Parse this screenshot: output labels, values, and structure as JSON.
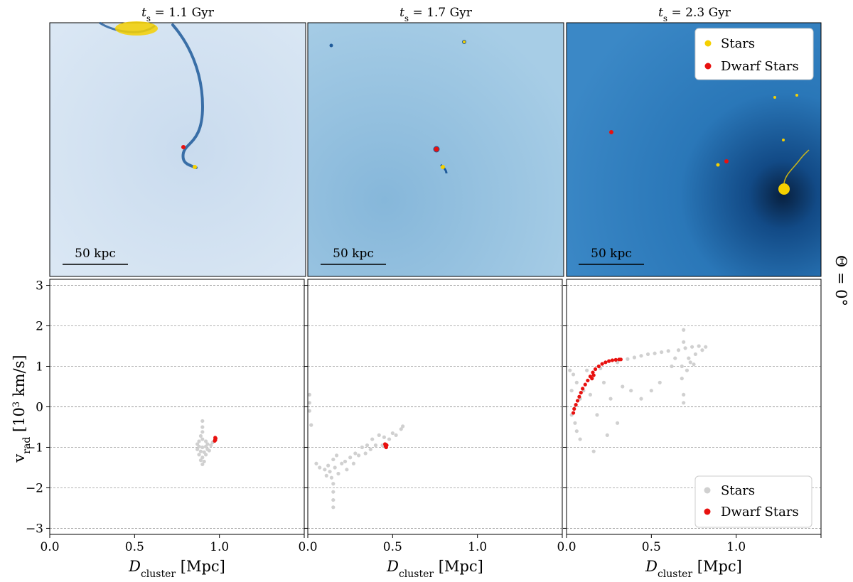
{
  "figure": {
    "side_label": "Θ = 0°",
    "panels": [
      {
        "title_sub": "s",
        "title_rest": " = 1.1 Gyr",
        "scale_bar": "50 kpc",
        "map_color": "#cfdff0",
        "stream_color": "#1f5a9a"
      },
      {
        "title_sub": "s",
        "title_rest": " = 1.7 Gyr",
        "scale_bar": "50 kpc",
        "map_color": "#8fbedd",
        "stream_color": "#1f5a9a"
      },
      {
        "title_sub": "s",
        "title_rest": " = 2.3 Gyr",
        "scale_bar": "50 kpc",
        "map_color": "#2e7ec0",
        "stream_color": "#0b2e57"
      }
    ],
    "map_legend": [
      {
        "label": "Stars",
        "color": "#f5d000"
      },
      {
        "label": "Dwarf Stars",
        "color": "#e8110f"
      }
    ]
  },
  "chart_data": {
    "type": "scatter",
    "xlabel_main": "D",
    "xlabel_sub": "cluster",
    "xlabel_unit": " [Mpc]",
    "ylabel_main": "v",
    "ylabel_sub": "rad",
    "ylabel_unit_pre": " [10",
    "ylabel_exp": "3",
    "ylabel_unit_post": " km/s]",
    "xlim": [
      0.0,
      1.5
    ],
    "ylim": [
      -3.15,
      3.15
    ],
    "xticks": [
      "0.0",
      "0.5",
      "1.0"
    ],
    "xtick_values": [
      0.0,
      0.5,
      1.0
    ],
    "yticks": [
      "3",
      "2",
      "1",
      "0",
      "−1",
      "−2",
      "−3"
    ],
    "ytick_values": [
      3,
      2,
      1,
      0,
      -1,
      -2,
      -3
    ],
    "grid": "horizontal dashed",
    "legend_position": "bottom-right",
    "colors": {
      "stars": "#d0d0d0",
      "dwarf": "#e8110f"
    },
    "legend": [
      {
        "label": "Stars",
        "color": "#d0d0d0"
      },
      {
        "label": "Dwarf Stars",
        "color": "#e8110f"
      }
    ],
    "panels": [
      {
        "t_s": "1.1 Gyr",
        "stars": [
          [
            0.9,
            -0.35
          ],
          [
            0.9,
            -0.5
          ],
          [
            0.9,
            -0.62
          ],
          [
            0.89,
            -0.72
          ],
          [
            0.9,
            -0.8
          ],
          [
            0.88,
            -0.85
          ],
          [
            0.92,
            -0.85
          ],
          [
            0.87,
            -0.92
          ],
          [
            0.93,
            -0.92
          ],
          [
            0.88,
            -0.98
          ],
          [
            0.92,
            -0.98
          ],
          [
            0.9,
            -1.0
          ],
          [
            0.87,
            -1.05
          ],
          [
            0.93,
            -1.05
          ],
          [
            0.89,
            -1.1
          ],
          [
            0.91,
            -1.12
          ],
          [
            0.88,
            -1.18
          ],
          [
            0.92,
            -1.18
          ],
          [
            0.9,
            -1.25
          ],
          [
            0.89,
            -1.32
          ],
          [
            0.91,
            -1.35
          ],
          [
            0.9,
            -1.42
          ],
          [
            0.96,
            -0.88
          ],
          [
            0.95,
            -0.95
          ],
          [
            0.94,
            -1.08
          ]
        ],
        "dwarf": [
          [
            0.975,
            -0.76
          ],
          [
            0.975,
            -0.8
          ],
          [
            0.972,
            -0.84
          ],
          [
            0.978,
            -0.78
          ],
          [
            0.976,
            -0.82
          ]
        ]
      },
      {
        "t_s": "1.7 Gyr",
        "stars": [
          [
            0.01,
            0.3
          ],
          [
            0.01,
            0.1
          ],
          [
            0.01,
            -0.1
          ],
          [
            0.02,
            -0.45
          ],
          [
            0.05,
            -1.4
          ],
          [
            0.07,
            -1.5
          ],
          [
            0.1,
            -1.55
          ],
          [
            0.11,
            -1.7
          ],
          [
            0.12,
            -1.45
          ],
          [
            0.13,
            -1.6
          ],
          [
            0.14,
            -1.75
          ],
          [
            0.15,
            -1.3
          ],
          [
            0.15,
            -1.9
          ],
          [
            0.15,
            -2.1
          ],
          [
            0.15,
            -2.3
          ],
          [
            0.15,
            -2.48
          ],
          [
            0.16,
            -1.5
          ],
          [
            0.17,
            -1.2
          ],
          [
            0.18,
            -1.65
          ],
          [
            0.2,
            -1.4
          ],
          [
            0.22,
            -1.35
          ],
          [
            0.23,
            -1.55
          ],
          [
            0.25,
            -1.25
          ],
          [
            0.27,
            -1.4
          ],
          [
            0.28,
            -1.15
          ],
          [
            0.3,
            -1.2
          ],
          [
            0.32,
            -1.0
          ],
          [
            0.34,
            -1.15
          ],
          [
            0.35,
            -0.95
          ],
          [
            0.37,
            -1.05
          ],
          [
            0.38,
            -0.8
          ],
          [
            0.4,
            -0.95
          ],
          [
            0.42,
            -0.7
          ],
          [
            0.44,
            -0.95
          ],
          [
            0.45,
            -0.75
          ],
          [
            0.48,
            -0.8
          ],
          [
            0.5,
            -0.65
          ],
          [
            0.52,
            -0.7
          ],
          [
            0.55,
            -0.55
          ],
          [
            0.56,
            -0.48
          ]
        ],
        "dwarf": [
          [
            0.455,
            -0.92
          ],
          [
            0.458,
            -0.97
          ],
          [
            0.462,
            -1.0
          ],
          [
            0.465,
            -0.95
          ],
          [
            0.46,
            -0.93
          ]
        ]
      },
      {
        "t_s": "2.3 Gyr",
        "stars": [
          [
            0.02,
            0.9
          ],
          [
            0.03,
            0.4
          ],
          [
            0.03,
            -0.2
          ],
          [
            0.04,
            0.8
          ],
          [
            0.05,
            -0.4
          ],
          [
            0.06,
            0.6
          ],
          [
            0.06,
            -0.6
          ],
          [
            0.08,
            0.2
          ],
          [
            0.08,
            -0.8
          ],
          [
            0.1,
            0.4
          ],
          [
            0.12,
            0.9
          ],
          [
            0.14,
            0.3
          ],
          [
            0.15,
            0.7
          ],
          [
            0.16,
            -1.1
          ],
          [
            0.18,
            -0.2
          ],
          [
            0.2,
            0.95
          ],
          [
            0.22,
            0.6
          ],
          [
            0.24,
            -0.7
          ],
          [
            0.26,
            0.2
          ],
          [
            0.3,
            1.1
          ],
          [
            0.3,
            -0.4
          ],
          [
            0.33,
            0.5
          ],
          [
            0.36,
            1.18
          ],
          [
            0.38,
            0.4
          ],
          [
            0.4,
            1.22
          ],
          [
            0.44,
            1.26
          ],
          [
            0.44,
            0.2
          ],
          [
            0.48,
            1.3
          ],
          [
            0.5,
            0.4
          ],
          [
            0.52,
            1.32
          ],
          [
            0.55,
            0.6
          ],
          [
            0.56,
            1.35
          ],
          [
            0.6,
            1.38
          ],
          [
            0.62,
            1.0
          ],
          [
            0.64,
            1.2
          ],
          [
            0.66,
            1.4
          ],
          [
            0.68,
            1.0
          ],
          [
            0.68,
            0.7
          ],
          [
            0.69,
            1.6
          ],
          [
            0.69,
            1.9
          ],
          [
            0.69,
            0.3
          ],
          [
            0.69,
            0.1
          ],
          [
            0.7,
            1.45
          ],
          [
            0.72,
            1.2
          ],
          [
            0.74,
            1.48
          ],
          [
            0.76,
            1.3
          ],
          [
            0.78,
            1.5
          ],
          [
            0.8,
            1.4
          ],
          [
            0.82,
            1.48
          ],
          [
            0.71,
            0.9
          ],
          [
            0.73,
            1.1
          ],
          [
            0.75,
            1.05
          ]
        ],
        "dwarf": [
          [
            0.04,
            -0.15
          ],
          [
            0.045,
            -0.05
          ],
          [
            0.055,
            0.05
          ],
          [
            0.065,
            0.15
          ],
          [
            0.075,
            0.25
          ],
          [
            0.085,
            0.35
          ],
          [
            0.095,
            0.45
          ],
          [
            0.11,
            0.55
          ],
          [
            0.125,
            0.65
          ],
          [
            0.14,
            0.75
          ],
          [
            0.155,
            0.85
          ],
          [
            0.17,
            0.93
          ],
          [
            0.19,
            1.0
          ],
          [
            0.21,
            1.06
          ],
          [
            0.23,
            1.1
          ],
          [
            0.25,
            1.13
          ],
          [
            0.27,
            1.15
          ],
          [
            0.29,
            1.16
          ],
          [
            0.31,
            1.17
          ],
          [
            0.32,
            1.17
          ],
          [
            0.15,
            0.7
          ],
          [
            0.16,
            0.78
          ]
        ]
      }
    ]
  }
}
